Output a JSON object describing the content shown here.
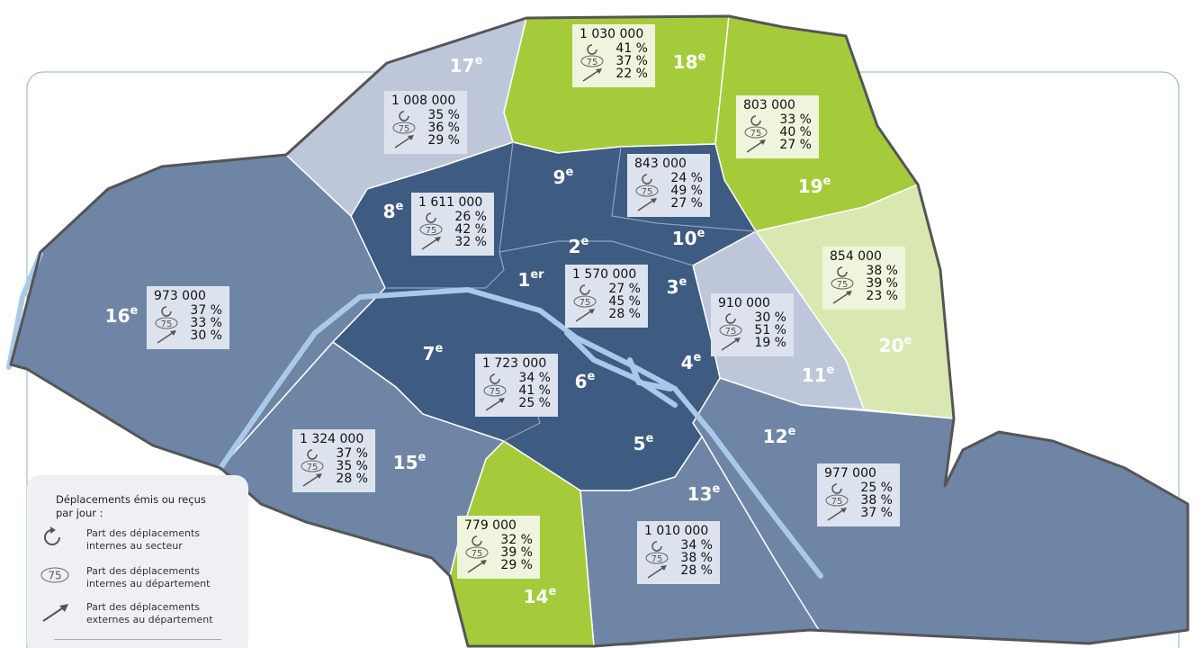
{
  "sectors": [
    {
      "total": "1 008 000",
      "internal": "35 %",
      "department": "36 %",
      "external": "29 %"
    },
    {
      "total": "1 030 000",
      "internal": "41 %",
      "department": "37 %",
      "external": "22 %"
    },
    {
      "total": "803 000",
      "internal": "33 %",
      "department": "40 %",
      "external": "27 %"
    },
    {
      "total": "1 611 000",
      "internal": "26 %",
      "department": "42 %",
      "external": "32 %"
    },
    {
      "total": "843 000",
      "internal": "24 %",
      "department": "49 %",
      "external": "27 %"
    },
    {
      "total": "973 000",
      "internal": "37 %",
      "department": "33 %",
      "external": "30 %"
    },
    {
      "total": "1 570 000",
      "internal": "27 %",
      "department": "45 %",
      "external": "28 %"
    },
    {
      "total": "910 000",
      "internal": "30 %",
      "department": "51 %",
      "external": "19 %"
    },
    {
      "total": "854 000",
      "internal": "38 %",
      "department": "39 %",
      "external": "23 %"
    },
    {
      "total": "1 723 000",
      "internal": "34 %",
      "department": "41 %",
      "external": "25 %"
    },
    {
      "total": "1 324 000",
      "internal": "37 %",
      "department": "35 %",
      "external": "28 %"
    },
    {
      "total": "977 000",
      "internal": "25 %",
      "department": "38 %",
      "external": "37 %"
    },
    {
      "total": "779 000",
      "internal": "32 %",
      "department": "39 %",
      "external": "29 %"
    },
    {
      "total": "1 010 000",
      "internal": "34 %",
      "department": "38 %",
      "external": "28 %"
    }
  ],
  "arrondissements": [
    {
      "number": "17",
      "suffix": "e"
    },
    {
      "number": "18",
      "suffix": "e"
    },
    {
      "number": "19",
      "suffix": "e"
    },
    {
      "number": "9",
      "suffix": "e"
    },
    {
      "number": "8",
      "suffix": "e"
    },
    {
      "number": "10",
      "suffix": "e"
    },
    {
      "number": "2",
      "suffix": "e"
    },
    {
      "number": "1",
      "suffix": "er"
    },
    {
      "number": "3",
      "suffix": "e"
    },
    {
      "number": "16",
      "suffix": "e"
    },
    {
      "number": "7",
      "suffix": "e"
    },
    {
      "number": "6",
      "suffix": "e"
    },
    {
      "number": "4",
      "suffix": "e"
    },
    {
      "number": "11",
      "suffix": "e"
    },
    {
      "number": "20",
      "suffix": "e"
    },
    {
      "number": "12",
      "suffix": "e"
    },
    {
      "number": "15",
      "suffix": "e"
    },
    {
      "number": "5",
      "suffix": "e"
    },
    {
      "number": "13",
      "suffix": "e"
    },
    {
      "number": "14",
      "suffix": "e"
    }
  ],
  "icon_label": "75",
  "legend": {
    "title": "Déplacements émis ou reçus par jour :",
    "items": [
      "Part des déplacements internes au secteur",
      "Part des déplacements internes au département",
      "Part des déplacements externes au département"
    ]
  }
}
